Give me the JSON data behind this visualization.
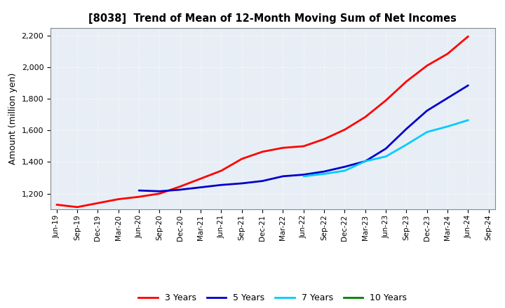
{
  "title": "[8038]  Trend of Mean of 12-Month Moving Sum of Net Incomes",
  "ylabel": "Amount (million yen)",
  "ylim": [
    1100,
    2250
  ],
  "yticks": [
    1200,
    1400,
    1600,
    1800,
    2000,
    2200
  ],
  "plot_bg_color": "#e8eef5",
  "fig_bg_color": "#ffffff",
  "grid_color": "#ffffff",
  "x_labels": [
    "Jun-19",
    "Sep-19",
    "Dec-19",
    "Mar-20",
    "Jun-20",
    "Sep-20",
    "Dec-20",
    "Mar-21",
    "Jun-21",
    "Sep-21",
    "Dec-21",
    "Mar-22",
    "Jun-22",
    "Sep-22",
    "Dec-22",
    "Mar-23",
    "Jun-23",
    "Sep-23",
    "Dec-23",
    "Mar-24",
    "Jun-24",
    "Sep-24"
  ],
  "series": {
    "3 Years": {
      "color": "#ff0000",
      "data": [
        1130,
        1115,
        1140,
        1165,
        1180,
        1200,
        1245,
        1295,
        1345,
        1420,
        1465,
        1490,
        1500,
        1545,
        1605,
        1685,
        1790,
        1910,
        2010,
        2085,
        2195,
        null
      ]
    },
    "5 Years": {
      "color": "#0000cc",
      "data": [
        null,
        null,
        null,
        null,
        1220,
        1215,
        1225,
        1240,
        1255,
        1265,
        1280,
        1310,
        1320,
        1340,
        1370,
        1405,
        1485,
        1610,
        1725,
        1805,
        1885,
        null
      ]
    },
    "7 Years": {
      "color": "#00ccff",
      "data": [
        null,
        null,
        null,
        null,
        null,
        null,
        null,
        null,
        null,
        null,
        null,
        null,
        1310,
        1325,
        1345,
        1405,
        1435,
        1510,
        1590,
        1625,
        1665,
        null
      ]
    },
    "10 Years": {
      "color": "#008000",
      "data": [
        null,
        null,
        null,
        null,
        null,
        null,
        null,
        null,
        null,
        null,
        null,
        null,
        null,
        null,
        null,
        null,
        null,
        null,
        null,
        null,
        null,
        null
      ]
    }
  },
  "legend_order": [
    "3 Years",
    "5 Years",
    "7 Years",
    "10 Years"
  ]
}
